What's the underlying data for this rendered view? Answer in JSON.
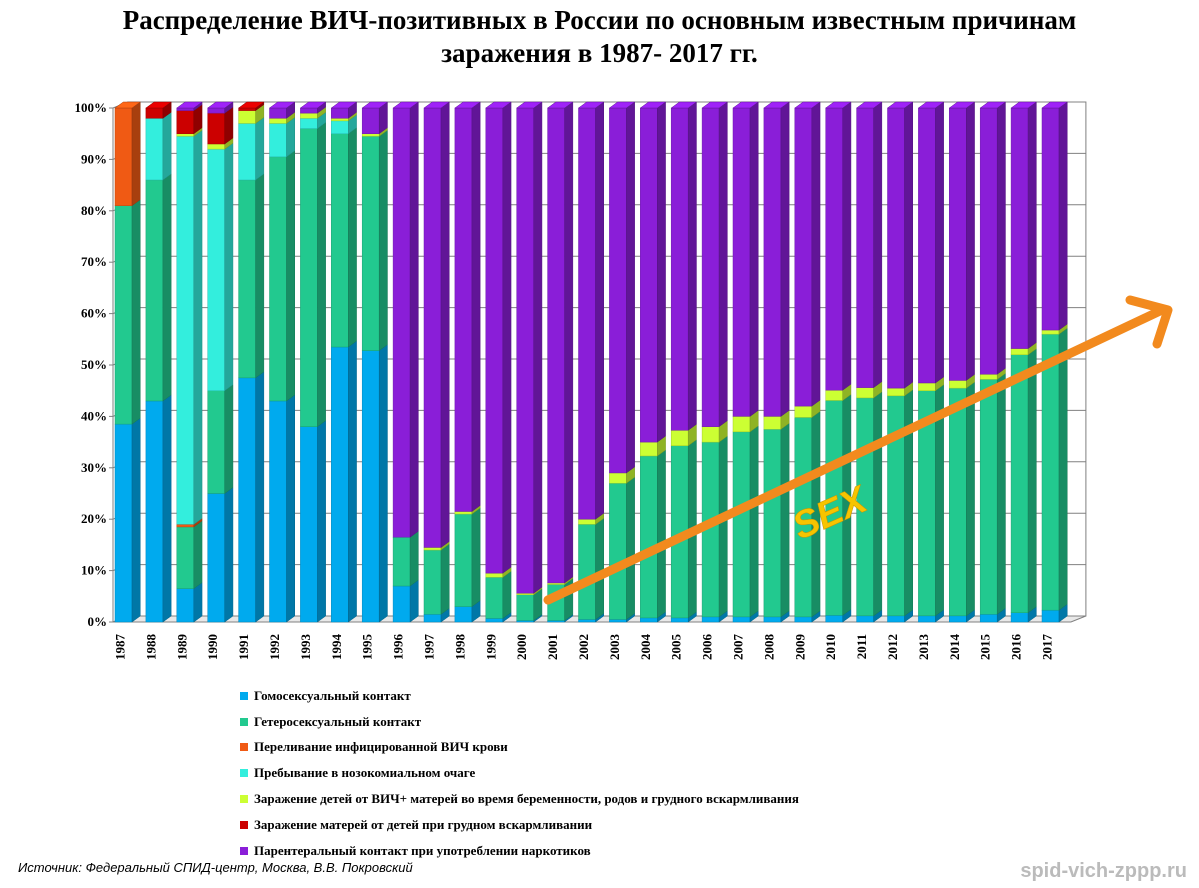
{
  "title_line1": "Распределение ВИЧ-позитивных в России по основным известным причинам",
  "title_line2": "заражения в 1987- 2017 гг.",
  "source": "Источник: Федеральный СПИД-центр, Москва, В.В. Покровский",
  "watermark": "spid-vich-zppp.ru",
  "annotation": "SEX",
  "chart_data": {
    "type": "bar",
    "stacked": true,
    "percent_axis": true,
    "title": "Распределение ВИЧ-позитивных в России по основным известным причинам заражения в 1987- 2017 гг.",
    "ylim": [
      0,
      100
    ],
    "y_ticks": [
      "0%",
      "10%",
      "20%",
      "30%",
      "40%",
      "50%",
      "60%",
      "70%",
      "80%",
      "90%",
      "100%"
    ],
    "legend_placement": "bottom",
    "categories": [
      "1987",
      "1988",
      "1989",
      "1990",
      "1991",
      "1992",
      "1993",
      "1994",
      "1995",
      "1996",
      "1997",
      "1998",
      "1999",
      "2000",
      "2001",
      "2002",
      "2003",
      "2004",
      "2005",
      "2006",
      "2007",
      "2008",
      "2009",
      "2010",
      "2011",
      "2012",
      "2013",
      "2014",
      "2015",
      "2016",
      "2017"
    ],
    "series": [
      {
        "name": "Гомосексуальный контакт",
        "color": "#00aaee",
        "values": [
          38.5,
          43,
          6.5,
          25,
          47.5,
          43,
          38,
          53.5,
          52.8,
          7,
          1.5,
          3,
          0.7,
          0.3,
          0.3,
          0.5,
          0.5,
          0.8,
          0.8,
          1,
          1,
          1,
          1,
          1.3,
          1.2,
          1.2,
          1.2,
          1.2,
          1.5,
          1.8,
          2.3
        ]
      },
      {
        "name": "Гетеросексуальный контакт",
        "color": "#22c98f",
        "values": [
          42.5,
          43,
          12,
          20,
          38.5,
          47.5,
          58,
          41.5,
          41.7,
          9.5,
          12.5,
          18,
          8,
          5,
          7,
          18.5,
          26.5,
          31.5,
          33.5,
          34,
          36,
          36.5,
          38.8,
          41.8,
          42.4,
          42.8,
          43.8,
          44.3,
          45.7,
          50.2,
          53.7
        ]
      },
      {
        "name": "Переливание  инфицированной ВИЧ крови",
        "color": "#f05a14",
        "values": [
          19,
          0,
          0.5,
          0,
          0,
          0,
          0,
          0,
          0,
          0,
          0,
          0,
          0,
          0,
          0,
          0,
          0,
          0,
          0,
          0,
          0,
          0,
          0,
          0,
          0,
          0,
          0,
          0,
          0,
          0,
          0
        ]
      },
      {
        "name": "Пребывание в нозокомиальном очаге",
        "color": "#33eedd",
        "values": [
          0,
          12,
          75.5,
          47,
          11,
          6.5,
          2,
          2.5,
          0,
          0,
          0,
          0,
          0,
          0,
          0,
          0,
          0,
          0,
          0,
          0,
          0,
          0,
          0,
          0,
          0,
          0,
          0,
          0,
          0,
          0,
          0
        ]
      },
      {
        "name": "Заражение детей от ВИЧ+ матерей во время беременности, родов и грудного вскармливания",
        "color": "#ccff33",
        "values": [
          0,
          0,
          0.5,
          1,
          2.5,
          1,
          1,
          0.5,
          0.5,
          0,
          0.5,
          0.5,
          0.8,
          0.3,
          0.3,
          1,
          2,
          2.7,
          3,
          3,
          3,
          2.5,
          2.2,
          2,
          2,
          1.5,
          1.5,
          1.5,
          1,
          1.2,
          0.8
        ]
      },
      {
        "name": "Заражение матерей от детей при грудном вскармливании",
        "color": "#cc0000",
        "values": [
          0,
          2,
          4.5,
          6,
          0.5,
          0,
          0,
          0,
          0,
          0,
          0,
          0,
          0,
          0,
          0,
          0,
          0,
          0,
          0,
          0,
          0,
          0,
          0,
          0,
          0,
          0,
          0,
          0,
          0,
          0,
          0
        ]
      },
      {
        "name": "Парентеральный контакт при употреблении наркотиков",
        "color": "#8a1ed8",
        "values": [
          0,
          0,
          0.5,
          1,
          0,
          2,
          1,
          2,
          5,
          83.5,
          85.5,
          78.5,
          90.5,
          94.4,
          92.4,
          80,
          71,
          65,
          62.7,
          62,
          60,
          60,
          58,
          54.9,
          54.4,
          54.5,
          53.5,
          53,
          51.8,
          46.8,
          43.2
        ]
      }
    ]
  }
}
